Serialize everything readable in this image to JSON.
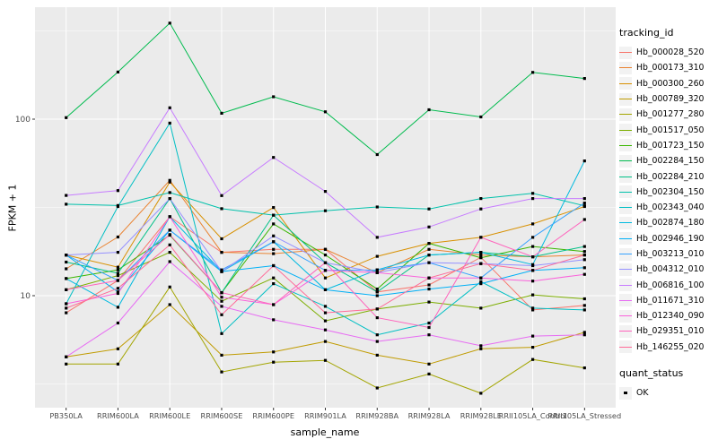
{
  "colors": {
    "panel_bg": "#EBEBEB",
    "grid": "#FFFFFF",
    "tick_text": "#4D4D4D",
    "tick_mark": "#333333",
    "marker": "#000000",
    "legend_key_bg": "#F2F2F2"
  },
  "chart_data": {
    "type": "line",
    "title": "",
    "xlabel": "sample_name",
    "ylabel": "FPKM + 1",
    "y_scale": "log10",
    "y_ticks": [
      100,
      10
    ],
    "y_minor_ticks": [
      316.23,
      31.623,
      3.1623
    ],
    "legend_title": "tracking_id",
    "legend_position": "right",
    "marker": "black-square",
    "grid": "on",
    "categories": [
      "PB350LA",
      "RRIM600LA",
      "RRIM600LE",
      "RRIM600SE",
      "RRIM600PE",
      "RRIM901LA",
      "RRIM928BA",
      "RRIM928LA",
      "RRIM928LE",
      "RRII105LA_Control",
      "RRII105LA_Stressed"
    ],
    "series": [
      {
        "name": "Hb_000028_520",
        "color": "#F8766D",
        "values": [
          8.0,
          12.2,
          28,
          17.6,
          18.3,
          18.3,
          10.5,
          11.5,
          16.5,
          8.3,
          8.8
        ]
      },
      {
        "name": "Hb_000173_310",
        "color": "#EA8331",
        "values": [
          14.2,
          21.5,
          45,
          17.6,
          17.3,
          18.3,
          13.5,
          18.3,
          17.0,
          16.6,
          17.0
        ]
      },
      {
        "name": "Hb_000300_260",
        "color": "#D89000",
        "values": [
          17.0,
          14.5,
          44,
          21.0,
          31.6,
          12.6,
          16.7,
          19.8,
          21.4,
          25.5,
          32.0
        ]
      },
      {
        "name": "Hb_000789_320",
        "color": "#C09B00",
        "values": [
          4.5,
          5.0,
          8.9,
          4.6,
          4.8,
          5.5,
          4.6,
          4.1,
          5.0,
          5.1,
          6.2
        ]
      },
      {
        "name": "Hb_001277_280",
        "color": "#A3A500",
        "values": [
          4.1,
          4.1,
          11.2,
          3.7,
          4.2,
          4.3,
          3.0,
          3.6,
          2.8,
          4.35,
          3.9
        ]
      },
      {
        "name": "Hb_001517_050",
        "color": "#7CAE00",
        "values": [
          10.8,
          13.0,
          17.6,
          9.3,
          12.6,
          7.2,
          8.4,
          9.2,
          8.5,
          10.1,
          9.6
        ]
      },
      {
        "name": "Hb_001723_150",
        "color": "#39B600",
        "values": [
          12.5,
          14.0,
          22.0,
          10.4,
          25.5,
          17.0,
          10.9,
          19.8,
          16.4,
          19.0,
          17.8
        ]
      },
      {
        "name": "Hb_002284_150",
        "color": "#00BB4E",
        "values": [
          102,
          185,
          350,
          108,
          134,
          110,
          63,
          113,
          103,
          184,
          170
        ]
      },
      {
        "name": "Hb_002284_210",
        "color": "#00C087",
        "values": [
          15.5,
          13.4,
          35.5,
          10.4,
          28.6,
          15.4,
          10.5,
          17.0,
          17.6,
          16.6,
          19.0
        ]
      },
      {
        "name": "Hb_002304_150",
        "color": "#00C1AB",
        "values": [
          33.0,
          32.4,
          38.4,
          31.1,
          28.6,
          30.3,
          31.8,
          31.0,
          35.5,
          38.0,
          32.3
        ]
      },
      {
        "name": "Hb_002343_040",
        "color": "#00BFC4",
        "values": [
          9.0,
          32.0,
          95,
          6.1,
          11.7,
          8.7,
          6.0,
          7.0,
          12.0,
          8.5,
          8.3
        ]
      },
      {
        "name": "Hb_002874_180",
        "color": "#00BAE0",
        "values": [
          12.5,
          8.6,
          28.0,
          13.7,
          20.2,
          10.8,
          14.0,
          17.0,
          17.6,
          15.0,
          58.0
        ]
      },
      {
        "name": "Hb_002946_190",
        "color": "#00B0F6",
        "values": [
          17.0,
          10.5,
          23.5,
          13.7,
          14.8,
          10.8,
          10.0,
          10.9,
          11.7,
          13.9,
          14.4
        ]
      },
      {
        "name": "Hb_003213_010",
        "color": "#35A2FF",
        "values": [
          17.0,
          12.2,
          23.5,
          14.0,
          20.2,
          13.9,
          14.0,
          15.4,
          12.6,
          21.4,
          33.5
        ]
      },
      {
        "name": "Hb_004312_010",
        "color": "#9590FF",
        "values": [
          17.0,
          17.6,
          35.5,
          13.7,
          21.8,
          15.4,
          13.5,
          15.4,
          15.2,
          14.8,
          16.0
        ]
      },
      {
        "name": "Hb_006816_100",
        "color": "#C77CFF",
        "values": [
          37.0,
          39.4,
          116,
          36.9,
          60.7,
          39.0,
          21.4,
          24.5,
          31.0,
          35.5,
          35.5
        ]
      },
      {
        "name": "Hb_011671_310",
        "color": "#E76BF3",
        "values": [
          4.5,
          7.0,
          15.6,
          8.7,
          7.3,
          6.4,
          5.5,
          6.0,
          5.2,
          5.9,
          6.0
        ]
      },
      {
        "name": "Hb_012340_090",
        "color": "#FA62DB",
        "values": [
          9.0,
          10.3,
          28.0,
          9.8,
          8.9,
          13.9,
          13.5,
          12.6,
          12.6,
          12.1,
          13.2
        ]
      },
      {
        "name": "Hb_029351_010",
        "color": "#FF62BC",
        "values": [
          10.8,
          12.2,
          22.2,
          10.4,
          8.9,
          15.4,
          7.5,
          6.6,
          21.4,
          16.6,
          27.0
        ]
      },
      {
        "name": "Hb_146255_020",
        "color": "#FF6A98",
        "values": [
          8.5,
          11.0,
          19.4,
          7.8,
          14.8,
          8.0,
          8.4,
          12.6,
          15.2,
          13.9,
          17.0
        ]
      }
    ],
    "quant_status": {
      "title": "quant_status",
      "items": [
        {
          "label": "OK",
          "marker": "black-square"
        }
      ]
    }
  }
}
